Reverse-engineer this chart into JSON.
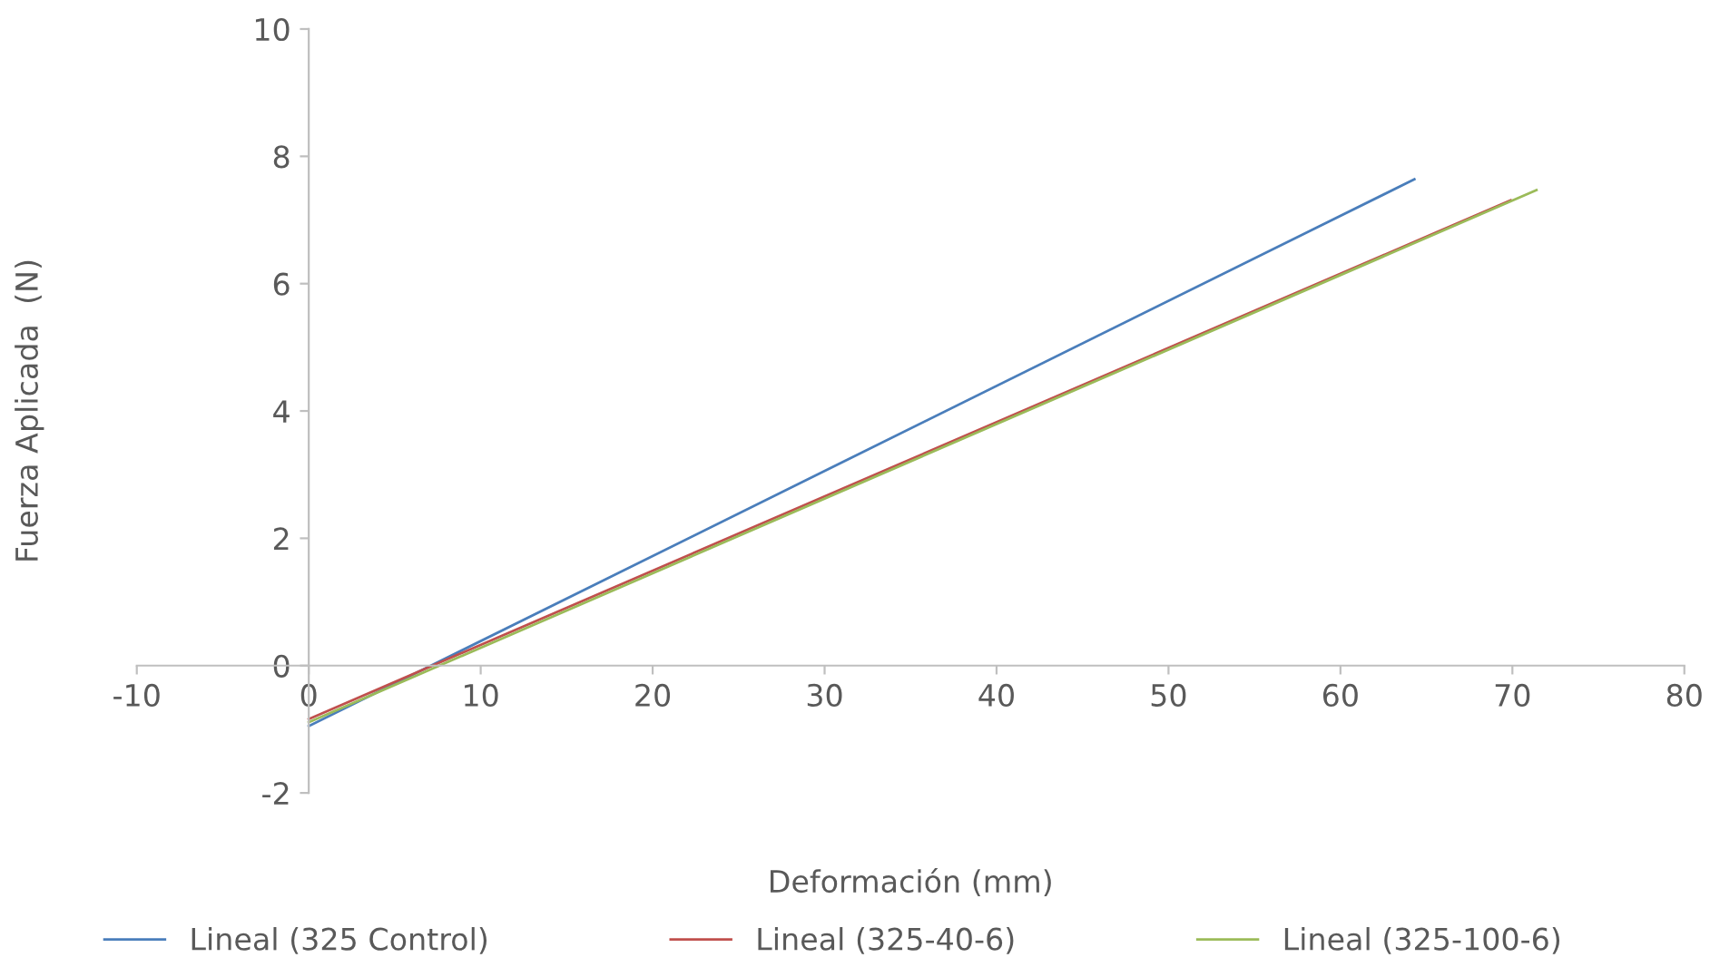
{
  "chart_data": {
    "type": "line",
    "xlabel": "Deformación (mm)",
    "ylabel": "Fuerza Aplicada  (N)",
    "xlim": [
      -10,
      80
    ],
    "xticks": [
      -10,
      0,
      10,
      20,
      30,
      40,
      50,
      60,
      70,
      80
    ],
    "ylim": [
      -2,
      10
    ],
    "yticks": [
      -2,
      0,
      2,
      4,
      6,
      8,
      10
    ],
    "grid": false,
    "legend": "bottom",
    "marker": "none",
    "line_style": "solid",
    "series": [
      {
        "name": "Lineal (325 Control)",
        "color": "#4a7ebb",
        "x": [
          0,
          64.3
        ],
        "values": [
          -0.95,
          7.64
        ]
      },
      {
        "name": "Lineal (325-40-6)",
        "color": "#c0504d",
        "x": [
          0,
          69.9
        ],
        "values": [
          -0.84,
          7.31
        ]
      },
      {
        "name": "Lineal (325-100-6)",
        "color": "#9bbb59",
        "x": [
          0,
          71.4
        ],
        "values": [
          -0.89,
          7.47
        ]
      }
    ]
  }
}
